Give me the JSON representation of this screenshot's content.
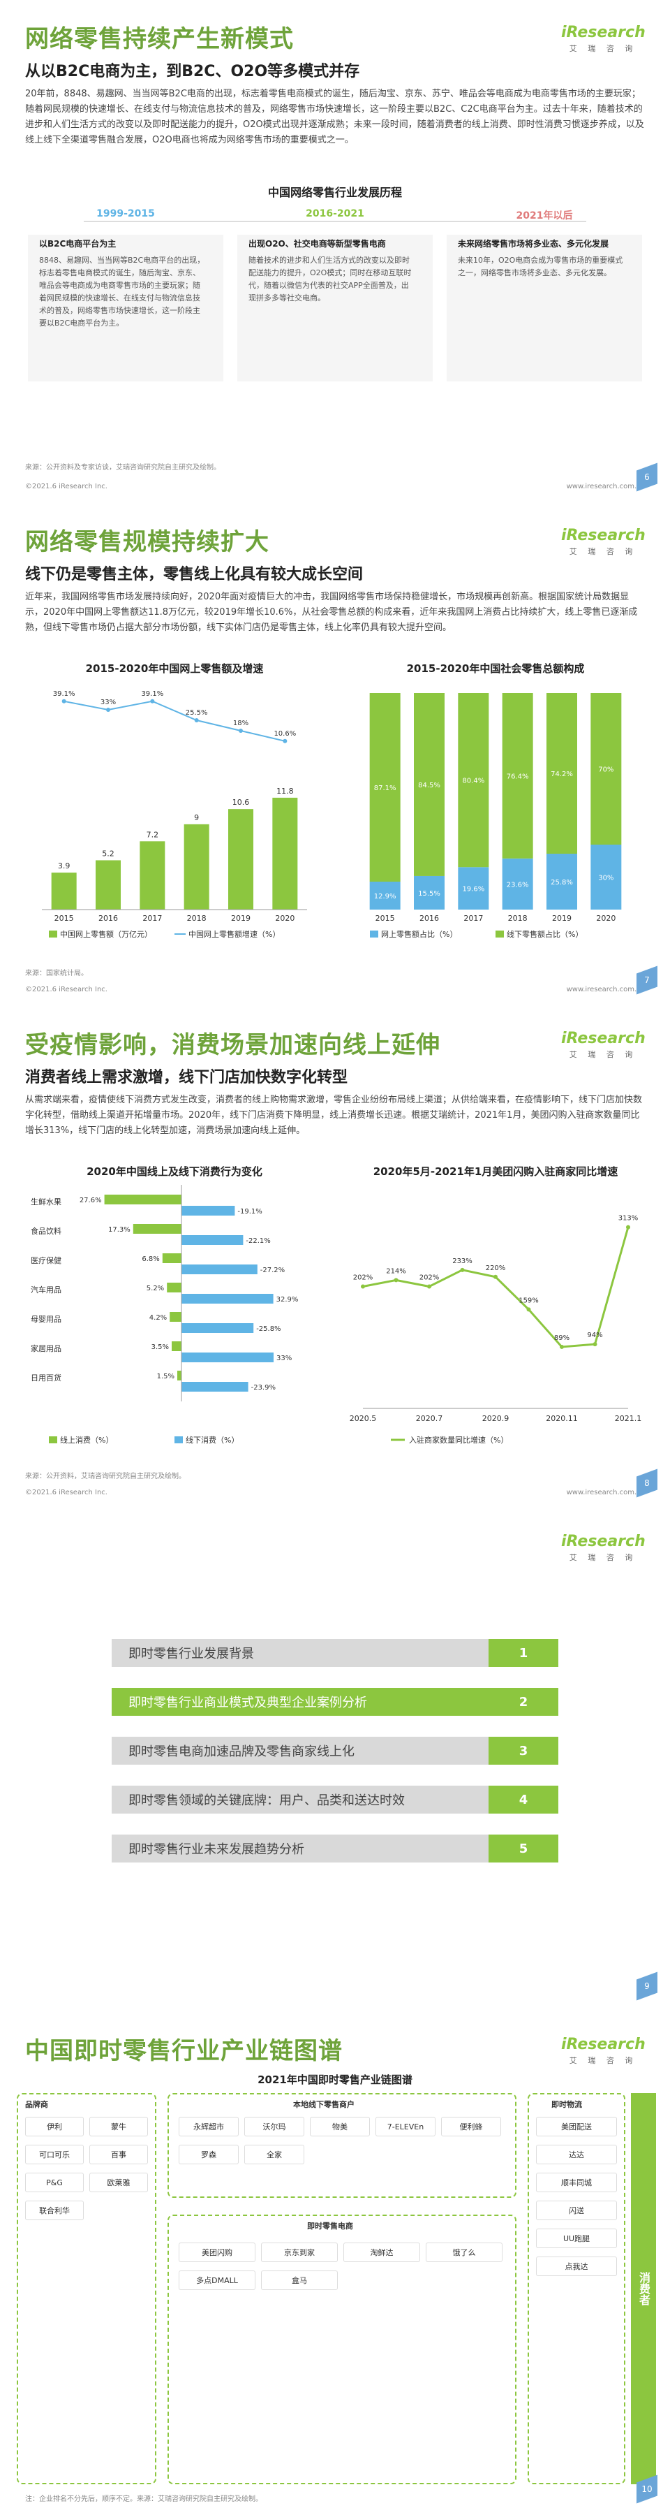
{
  "logo": {
    "brand_i": "i",
    "brand_rest": "Research",
    "tagline": "艾 瑞 咨 询"
  },
  "footer": {
    "copyright": "©2021.6 iResearch Inc.",
    "site": "www.iresearch.com.cn"
  },
  "colors": {
    "accent": "#6ea33a",
    "accent_light": "#8cc63f",
    "blue": "#5fb4e5",
    "gray": "#d9d9d9"
  },
  "slide1": {
    "title": "网络零售持续产生新模式",
    "subtitle": "从以B2C电商为主，到B2C、O2O等多模式并存",
    "paragraph": "20年前，8848、易趣网、当当网等B2C电商的出现，标志着零售电商模式的诞生，随后淘宝、京东、苏宁、唯品会等电商成为电商零售市场的主要玩家；随着网民规模的快速增长、在线支付与物流信息技术的普及，网络零售市场快速增长，这一阶段主要以B2C、C2C电商平台为主。过去十年来，随着技术的进步和人们生活方式的改变以及即时配送能力的提升，O2O模式出现并逐渐成熟；未来一段时间，随着消费者的线上消费、即时性消费习惯逐步养成，以及线上线下全渠道零售融合发展，O2O电商也将成为网络零售市场的重要模式之一。",
    "section_title": "中国网络零售行业发展历程",
    "phases": [
      {
        "years": "1999-2015",
        "head": "以B2C电商平台为主",
        "body": "8848、易趣网、当当网等B2C电商平台的出现，标志着零售电商模式的诞生，随后淘宝、京东、唯品会等电商成为电商零售市场的主要玩家；随着网民规模的快速增长、在线支付与物流信息技术的普及，网络零售市场快速增长，这一阶段主要以B2C电商平台为主。"
      },
      {
        "years": "2016-2021",
        "head": "出现O2O、社交电商等新型零售电商",
        "body": "随着技术的进步和人们生活方式的改变以及即时配送能力的提升，O2O模式；同时在移动互联时代，随着以微信为代表的社交APP全面普及，出现拼多多等社交电商。"
      },
      {
        "years": "2021年以后",
        "head": "未来网络零售市场将多业态、多元化发展",
        "body": "未来10年，O2O电商会成为零售市场的重要模式之一，网络零售市场将多业态、多元化发展。"
      }
    ],
    "source": "来源：公开资料及专家访谈，艾瑞咨询研究院自主研究及绘制。",
    "page": "6"
  },
  "slide2": {
    "title": "网络零售规模持续扩大",
    "subtitle": "线下仍是零售主体，零售线上化具有较大成长空间",
    "paragraph": "近年来，我国网络零售市场发展持续向好，2020年面对疫情巨大的冲击，我国网络零售市场保持稳健增长，市场规模再创新高。根据国家统计局数据显示，2020年中国网上零售额达11.8万亿元，较2019年增长10.6%，从社会零售总额的构成来看，近年来我国网上消费占比持续扩大，线上零售已逐渐成熟，但线下零售市场仍占据大部分市场份额，线下实体门店仍是零售主体，线上化率仍具有较大提升空间。",
    "left_title": "2015-2020年中国网上零售额及增速",
    "right_title": "2015-2020年中国社会零售总额构成",
    "source": "来源：国家统计局。",
    "page": "7"
  },
  "slide3": {
    "title": "受疫情影响，消费场景加速向线上延伸",
    "subtitle": "消费者线上需求激增，线下门店加快数字化转型",
    "paragraph": "从需求端来看，疫情使线下消费方式发生改变，消费者的线上购物需求激增，零售企业纷纷布局线上渠道；从供给端来看，在疫情影响下，线下门店加快数字化转型，借助线上渠道开拓增量市场。2020年，线下门店消费下降明显，线上消费增长迅速。根据艾瑞统计，2021年1月，美团闪购入驻商家数量同比增长313%，线下门店的线上化转型加速，消费场景加速向线上延伸。",
    "left_title": "2020年中国线上及线下消费行为变化",
    "right_title": "2020年5月-2021年1月美团闪购入驻商家同比增速",
    "source": "来源：公开资料，艾瑞咨询研究院自主研究及绘制。",
    "page": "8"
  },
  "slide4": {
    "items": [
      {
        "label": "即时零售行业发展背景",
        "num": "1"
      },
      {
        "label": "即时零售行业商业模式及典型企业案例分析",
        "num": "2"
      },
      {
        "label": "即时零售电商加速品牌及零售商家线上化",
        "num": "3"
      },
      {
        "label": "即时零售领域的关键底牌：用户、品类和送达时效",
        "num": "4"
      },
      {
        "label": "即时零售行业未来发展趋势分析",
        "num": "5"
      }
    ],
    "page": "9"
  },
  "slide5": {
    "title": "中国即时零售行业产业链图谱",
    "chart_title": "2021年中国即时零售产业链图谱",
    "brand_label": "品牌商",
    "local_label": "本地线下零售商户",
    "platform_label": "即时零售电商",
    "delivery_label": "即时物流",
    "consumer_label": "消费者",
    "chips_local": [
      "永辉超市",
      "沃尔玛",
      "物美",
      "7-ELEVEn",
      "便利蜂",
      "罗森",
      "全家"
    ],
    "chips_platform": [
      "美团闪购",
      "京东到家",
      "淘鲜达",
      "饿了么",
      "多点DMALL",
      "盒马"
    ],
    "chips_delivery": [
      "美团配送",
      "达达",
      "顺丰同城",
      "闪送",
      "UU跑腿",
      "点我达"
    ],
    "chips_brand": [
      "伊利",
      "蒙牛",
      "可口可乐",
      "百事",
      "P&G",
      "欧莱雅",
      "联合利华"
    ],
    "note": "注：企业排名不分先后，顺序不定。来源：艾瑞咨询研究院自主研究及绘制。",
    "page": "10"
  },
  "chart_data": [
    {
      "type": "bar",
      "title": "2015-2020年中国网上零售额及增速",
      "categories": [
        "2015",
        "2016",
        "2017",
        "2018",
        "2019",
        "2020"
      ],
      "series": [
        {
          "name": "中国网上零售额（万亿元）",
          "values": [
            3.9,
            5.2,
            7.2,
            9.0,
            10.6,
            11.8
          ]
        },
        {
          "name": "中国网上零售额增速（%）",
          "values": [
            39.1,
            33.0,
            39.1,
            25.5,
            18.0,
            10.6
          ]
        }
      ]
    },
    {
      "type": "bar",
      "title": "2015-2020年中国社会零售总额构成",
      "categories": [
        "2015",
        "2016",
        "2017",
        "2018",
        "2019",
        "2020"
      ],
      "series": [
        {
          "name": "网上零售额占比（%）",
          "values": [
            12.9,
            15.5,
            19.6,
            23.6,
            25.8,
            30.0
          ]
        },
        {
          "name": "线下零售额占比（%）",
          "values": [
            87.1,
            84.5,
            80.4,
            76.4,
            74.2,
            70.0
          ]
        }
      ]
    },
    {
      "type": "bar",
      "title": "2020年中国线上及线下消费行为变化",
      "categories": [
        "生鲜水果",
        "食品饮料",
        "医疗保健",
        "汽车用品",
        "母婴用品",
        "家居用品",
        "日用百货"
      ],
      "series": [
        {
          "name": "线上消费（%）",
          "values": [
            27.6,
            17.3,
            6.8,
            5.2,
            4.2,
            3.5,
            1.5
          ]
        },
        {
          "name": "线下消费（%）",
          "values": [
            -19.1,
            -22.1,
            -27.2,
            32.9,
            -25.8,
            33.0,
            -23.9
          ]
        }
      ]
    },
    {
      "type": "line",
      "title": "2020年5月-2021年1月美团闪购入驻商家同比增速",
      "x": [
        "2020.5",
        "2020.6",
        "2020.7",
        "2020.8",
        "2020.9",
        "2020.10",
        "2020.11",
        "2020.12",
        "2021.1"
      ],
      "series": [
        {
          "name": "入驻商家数量同比增速（%）",
          "values": [
            202,
            214,
            202,
            233,
            220,
            159,
            89,
            94,
            313
          ]
        }
      ],
      "xticks": [
        "2020.5",
        "2020.7",
        "2020.9",
        "2020.11",
        "2021.1"
      ]
    }
  ]
}
